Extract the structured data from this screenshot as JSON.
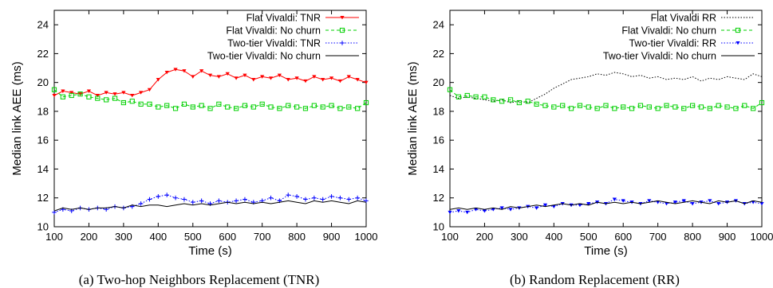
{
  "chart_data": [
    {
      "type": "line",
      "caption": "(a) Two-hop Neighbors Replacement (TNR)",
      "xlabel": "Time (s)",
      "ylabel": "Median link AEE (ms)",
      "xlim": [
        100,
        1000
      ],
      "ylim": [
        10,
        25
      ],
      "xticks": [
        100,
        200,
        300,
        400,
        500,
        600,
        700,
        800,
        900,
        1000
      ],
      "yticks": [
        10,
        12,
        14,
        16,
        18,
        20,
        22,
        24
      ],
      "legend_position": "top-right",
      "grid": false,
      "series": [
        {
          "name": "Flat Vivaldi: TNR",
          "color": "#ff0000",
          "marker": "triangle-down",
          "dash": "solid",
          "x": [
            100,
            125,
            150,
            175,
            200,
            225,
            250,
            275,
            300,
            325,
            350,
            375,
            400,
            425,
            450,
            475,
            500,
            525,
            550,
            575,
            600,
            625,
            650,
            675,
            700,
            725,
            750,
            775,
            800,
            825,
            850,
            875,
            900,
            925,
            950,
            975,
            1000
          ],
          "y": [
            19.1,
            19.4,
            19.3,
            19.2,
            19.4,
            19.1,
            19.3,
            19.2,
            19.3,
            19.1,
            19.3,
            19.5,
            20.2,
            20.7,
            20.9,
            20.8,
            20.4,
            20.8,
            20.5,
            20.4,
            20.6,
            20.3,
            20.5,
            20.2,
            20.4,
            20.3,
            20.5,
            20.2,
            20.3,
            20.1,
            20.4,
            20.2,
            20.3,
            20.1,
            20.4,
            20.2,
            20.0
          ]
        },
        {
          "name": "Flat Vivaldi: No churn",
          "color": "#00d000",
          "marker": "square",
          "dash": "dashed",
          "x": [
            100,
            125,
            150,
            175,
            200,
            225,
            250,
            275,
            300,
            325,
            350,
            375,
            400,
            425,
            450,
            475,
            500,
            525,
            550,
            575,
            600,
            625,
            650,
            675,
            700,
            725,
            750,
            775,
            800,
            825,
            850,
            875,
            900,
            925,
            950,
            975,
            1000
          ],
          "y": [
            19.5,
            19.0,
            19.1,
            19.2,
            19.0,
            18.9,
            18.8,
            18.9,
            18.6,
            18.7,
            18.5,
            18.5,
            18.3,
            18.4,
            18.2,
            18.5,
            18.3,
            18.4,
            18.2,
            18.5,
            18.3,
            18.2,
            18.4,
            18.3,
            18.5,
            18.3,
            18.2,
            18.4,
            18.3,
            18.2,
            18.4,
            18.3,
            18.4,
            18.2,
            18.3,
            18.2,
            18.6
          ]
        },
        {
          "name": "Two-tier Vivaldi: TNR",
          "color": "#0000ff",
          "marker": "plus",
          "dash": "dotted",
          "x": [
            100,
            125,
            150,
            175,
            200,
            225,
            250,
            275,
            300,
            325,
            350,
            375,
            400,
            425,
            450,
            475,
            500,
            525,
            550,
            575,
            600,
            625,
            650,
            675,
            700,
            725,
            750,
            775,
            800,
            825,
            850,
            875,
            900,
            925,
            950,
            975,
            1000
          ],
          "y": [
            11.0,
            11.2,
            11.1,
            11.3,
            11.2,
            11.3,
            11.2,
            11.4,
            11.3,
            11.4,
            11.6,
            11.9,
            12.1,
            12.2,
            12.0,
            11.9,
            11.7,
            11.8,
            11.6,
            11.8,
            11.7,
            11.8,
            11.9,
            11.7,
            11.8,
            12.0,
            11.8,
            12.2,
            12.1,
            11.9,
            12.0,
            11.9,
            12.1,
            12.0,
            11.9,
            12.0,
            11.8
          ]
        },
        {
          "name": "Two-tier Vivaldi: No churn",
          "color": "#000000",
          "marker": "none",
          "dash": "solid",
          "x": [
            100,
            125,
            150,
            175,
            200,
            225,
            250,
            275,
            300,
            325,
            350,
            375,
            400,
            425,
            450,
            475,
            500,
            525,
            550,
            575,
            600,
            625,
            650,
            675,
            700,
            725,
            750,
            775,
            800,
            825,
            850,
            875,
            900,
            925,
            950,
            975,
            1000
          ],
          "y": [
            11.1,
            11.3,
            11.2,
            11.3,
            11.2,
            11.3,
            11.3,
            11.4,
            11.3,
            11.5,
            11.4,
            11.5,
            11.5,
            11.4,
            11.5,
            11.6,
            11.5,
            11.6,
            11.5,
            11.6,
            11.7,
            11.6,
            11.7,
            11.6,
            11.7,
            11.6,
            11.7,
            11.8,
            11.7,
            11.6,
            11.8,
            11.7,
            11.8,
            11.7,
            11.6,
            11.8,
            11.7
          ]
        }
      ]
    },
    {
      "type": "line",
      "caption": "(b) Random Replacement (RR)",
      "xlabel": "Time (s)",
      "ylabel": "Median link AEE (ms)",
      "xlim": [
        100,
        1000
      ],
      "ylim": [
        10,
        25
      ],
      "xticks": [
        100,
        200,
        300,
        400,
        500,
        600,
        700,
        800,
        900,
        1000
      ],
      "yticks": [
        10,
        12,
        14,
        16,
        18,
        20,
        22,
        24
      ],
      "legend_position": "top-right",
      "grid": false,
      "series": [
        {
          "name": "Flat Vivaldi RR",
          "color": "#000000",
          "marker": "none",
          "dash": "dotted",
          "x": [
            100,
            125,
            150,
            175,
            200,
            225,
            250,
            275,
            300,
            325,
            350,
            375,
            400,
            425,
            450,
            475,
            500,
            525,
            550,
            575,
            600,
            625,
            650,
            675,
            700,
            725,
            750,
            775,
            800,
            825,
            850,
            875,
            900,
            925,
            950,
            975,
            1000
          ],
          "y": [
            19.1,
            18.9,
            19.0,
            18.9,
            18.8,
            18.7,
            18.8,
            18.6,
            18.7,
            18.6,
            18.9,
            19.2,
            19.6,
            19.9,
            20.2,
            20.3,
            20.4,
            20.6,
            20.5,
            20.7,
            20.6,
            20.4,
            20.5,
            20.3,
            20.4,
            20.2,
            20.3,
            20.2,
            20.4,
            20.1,
            20.3,
            20.2,
            20.4,
            20.3,
            20.2,
            20.6,
            20.4
          ]
        },
        {
          "name": "Flat Vivaldi: No churn",
          "color": "#00d000",
          "marker": "square",
          "dash": "dashed",
          "x": [
            100,
            125,
            150,
            175,
            200,
            225,
            250,
            275,
            300,
            325,
            350,
            375,
            400,
            425,
            450,
            475,
            500,
            525,
            550,
            575,
            600,
            625,
            650,
            675,
            700,
            725,
            750,
            775,
            800,
            825,
            850,
            875,
            900,
            925,
            950,
            975,
            1000
          ],
          "y": [
            19.5,
            19.0,
            19.1,
            19.0,
            19.0,
            18.8,
            18.7,
            18.8,
            18.6,
            18.7,
            18.5,
            18.4,
            18.3,
            18.4,
            18.2,
            18.4,
            18.3,
            18.2,
            18.4,
            18.2,
            18.3,
            18.2,
            18.4,
            18.3,
            18.2,
            18.4,
            18.3,
            18.2,
            18.4,
            18.3,
            18.2,
            18.4,
            18.3,
            18.2,
            18.4,
            18.2,
            18.6
          ]
        },
        {
          "name": "Two-tier Vivaldi: RR",
          "color": "#0000ff",
          "marker": "triangle-down",
          "dash": "dotted",
          "x": [
            100,
            125,
            150,
            175,
            200,
            225,
            250,
            275,
            300,
            325,
            350,
            375,
            400,
            425,
            450,
            475,
            500,
            525,
            550,
            575,
            600,
            625,
            650,
            675,
            700,
            725,
            750,
            775,
            800,
            825,
            850,
            875,
            900,
            925,
            950,
            975,
            1000
          ],
          "y": [
            11.0,
            11.1,
            11.0,
            11.2,
            11.1,
            11.2,
            11.3,
            11.2,
            11.3,
            11.4,
            11.3,
            11.5,
            11.4,
            11.6,
            11.5,
            11.5,
            11.6,
            11.7,
            11.6,
            11.9,
            11.8,
            11.7,
            11.6,
            11.8,
            11.7,
            11.6,
            11.7,
            11.8,
            11.6,
            11.7,
            11.8,
            11.6,
            11.7,
            11.8,
            11.6,
            11.7,
            11.6
          ]
        },
        {
          "name": "Two-tier Vivaldi: No churn",
          "color": "#000000",
          "marker": "none",
          "dash": "solid",
          "x": [
            100,
            125,
            150,
            175,
            200,
            225,
            250,
            275,
            300,
            325,
            350,
            375,
            400,
            425,
            450,
            475,
            500,
            525,
            550,
            575,
            600,
            625,
            650,
            675,
            700,
            725,
            750,
            775,
            800,
            825,
            850,
            875,
            900,
            925,
            950,
            975,
            1000
          ],
          "y": [
            11.2,
            11.3,
            11.2,
            11.3,
            11.2,
            11.3,
            11.2,
            11.4,
            11.3,
            11.4,
            11.5,
            11.4,
            11.5,
            11.6,
            11.5,
            11.6,
            11.5,
            11.7,
            11.6,
            11.7,
            11.6,
            11.7,
            11.6,
            11.7,
            11.8,
            11.7,
            11.6,
            11.7,
            11.8,
            11.7,
            11.6,
            11.8,
            11.7,
            11.8,
            11.6,
            11.8,
            11.7
          ]
        }
      ]
    }
  ]
}
